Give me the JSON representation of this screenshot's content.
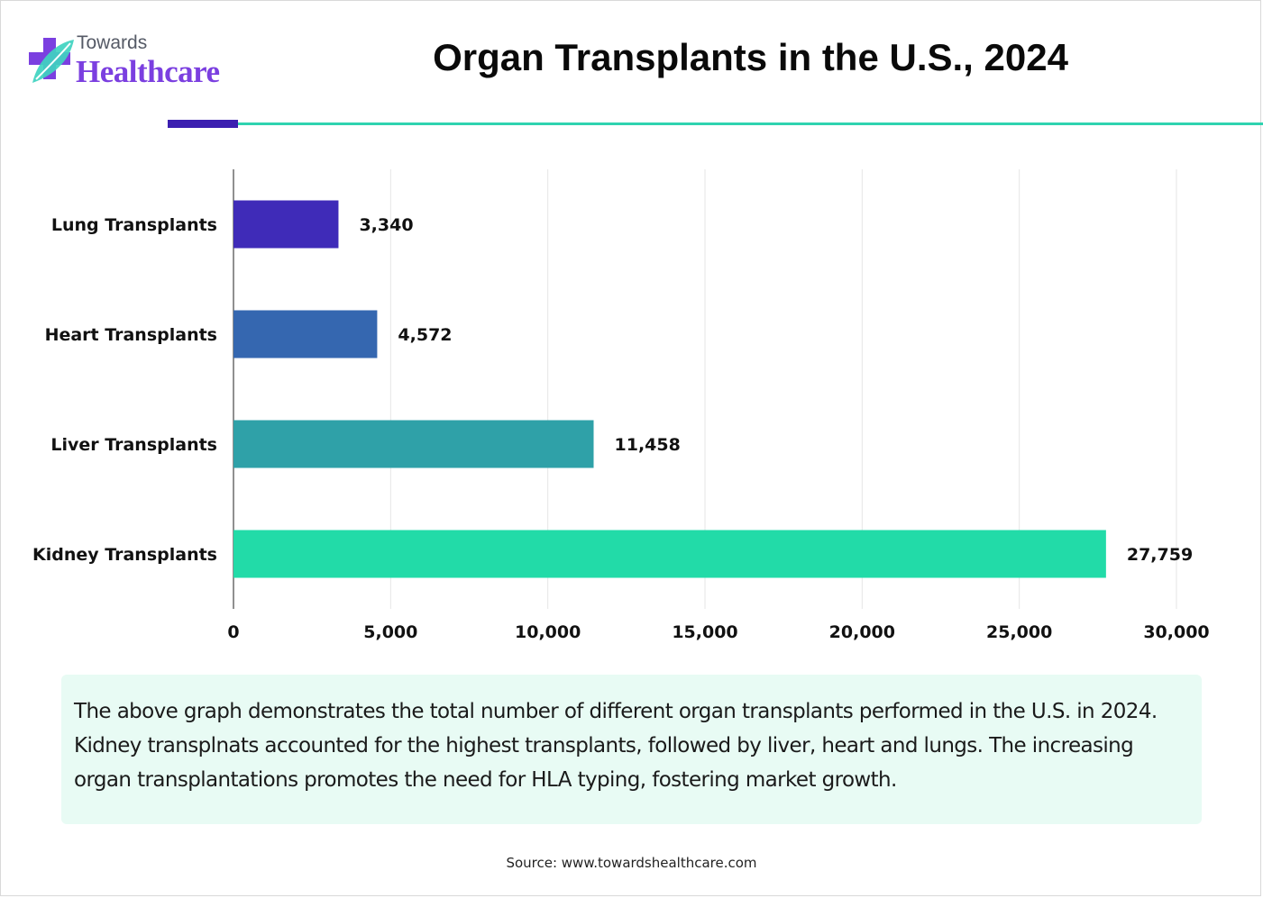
{
  "brand": {
    "top_word": "Towards",
    "main_word": "Healthcare",
    "colors": {
      "purple": "#7b3fe0",
      "teal": "#2fd3b0",
      "navy": "#3b1fb0"
    }
  },
  "chart_data": {
    "type": "bar",
    "orientation": "horizontal",
    "title": "Organ Transplants in the U.S., 2024",
    "categories": [
      "Lung Transplants",
      "Heart Transplants",
      "Liver Transplants",
      "Kidney Transplants"
    ],
    "values": [
      3340,
      4572,
      11458,
      27759
    ],
    "value_labels": [
      "3,340",
      "4,572",
      "11,458",
      "27,759"
    ],
    "bar_colors": [
      "#3f2bb8",
      "#3567b0",
      "#2fa1a8",
      "#22dba8"
    ],
    "xlim": [
      0,
      30000
    ],
    "xticks": [
      0,
      5000,
      10000,
      15000,
      20000,
      25000,
      30000
    ],
    "xtick_labels": [
      "0",
      "5,000",
      "10,000",
      "15,000",
      "20,000",
      "25,000",
      "30,000"
    ],
    "xlabel": "",
    "ylabel": "",
    "grid": true
  },
  "description": "The above graph demonstrates the total number of different organ transplants performed in the U.S. in 2024. Kidney transplnats accounted for the highest transplants, followed by liver, heart and lungs. The increasing organ transplantations promotes the need for HLA typing, fostering market growth.",
  "source": "Source: www.towardshealthcare.com"
}
